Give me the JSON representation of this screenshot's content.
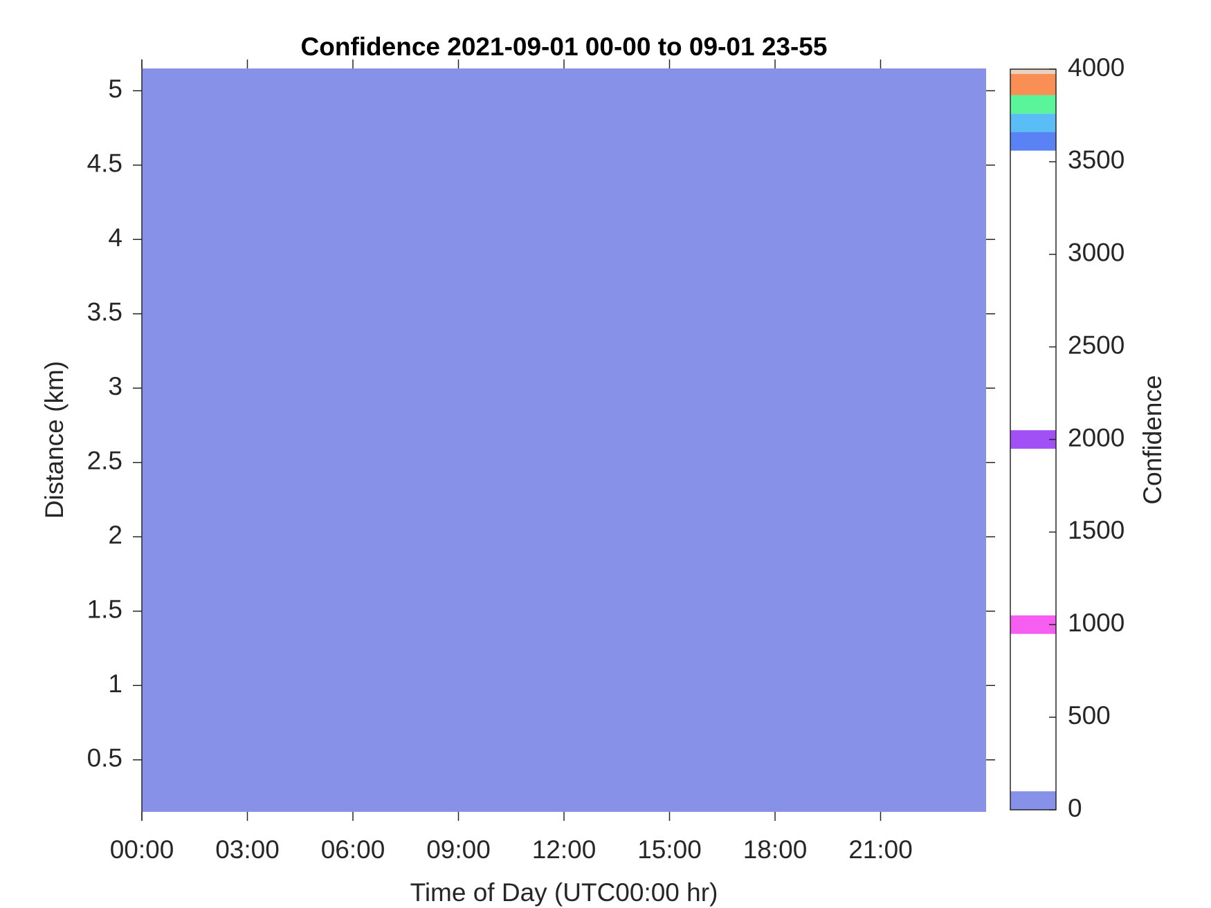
{
  "chart_data": {
    "type": "heatmap",
    "title": "Confidence 2021-09-01 00-00 to 09-01 23-55",
    "x_label": "Time of Day (UTC00:00 hr)",
    "y_label": "Distance (km)",
    "xlim": [
      0,
      24
    ],
    "xticks": [
      {
        "value": 0,
        "label": "00:00"
      },
      {
        "value": 3,
        "label": "03:00"
      },
      {
        "value": 6,
        "label": "06:00"
      },
      {
        "value": 9,
        "label": "09:00"
      },
      {
        "value": 12,
        "label": "12:00"
      },
      {
        "value": 15,
        "label": "15:00"
      },
      {
        "value": 18,
        "label": "18:00"
      },
      {
        "value": 21,
        "label": "21:00"
      }
    ],
    "ylim": [
      0.15,
      5.15
    ],
    "yticks": [
      0.5,
      1,
      1.5,
      2,
      2.5,
      3,
      3.5,
      4,
      4.5,
      5
    ],
    "z": 50,
    "colorbar": {
      "label": "Confidence",
      "lim": [
        0,
        4000
      ],
      "ticks": [
        0,
        500,
        1000,
        1500,
        2000,
        2500,
        3000,
        3500,
        4000
      ],
      "bands": [
        {
          "from": 0,
          "to": 100,
          "color": "#8891e8"
        },
        {
          "from": 950,
          "to": 1050,
          "color": "#f55ef0"
        },
        {
          "from": 1950,
          "to": 2050,
          "color": "#a050f5"
        },
        {
          "from": 3560,
          "to": 3660,
          "color": "#5a82f5"
        },
        {
          "from": 3660,
          "to": 3760,
          "color": "#5abdf5"
        },
        {
          "from": 3760,
          "to": 3860,
          "color": "#5af59a"
        },
        {
          "from": 3860,
          "to": 3975,
          "color": "#fa8f55"
        },
        {
          "from": 3975,
          "to": 4000,
          "color": "#ead2c3"
        }
      ]
    }
  }
}
